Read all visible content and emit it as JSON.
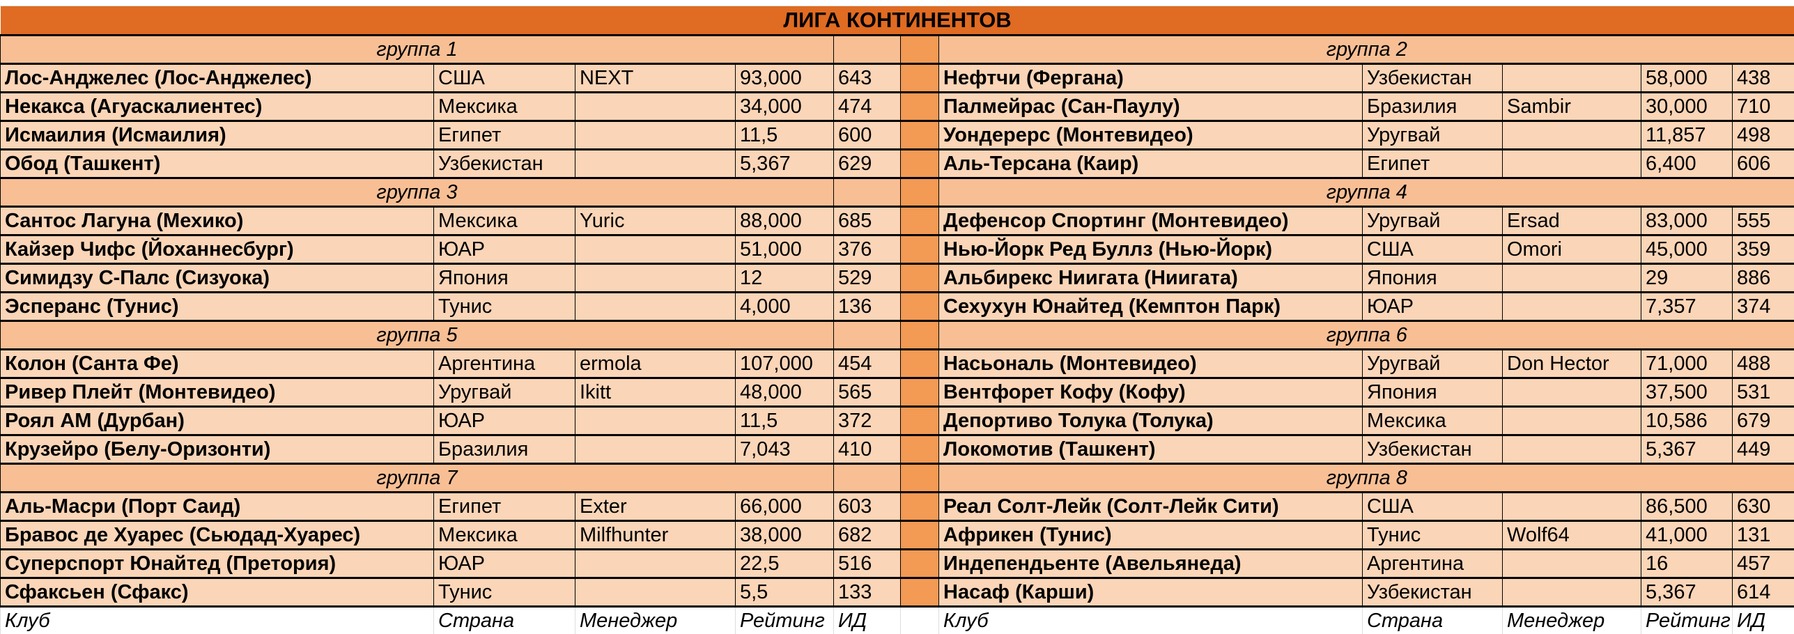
{
  "title": "ЛИГА  КОНТИНЕНТОВ",
  "colors": {
    "title_bg": "#e06b22",
    "group_bg": "#f8bf95",
    "row_bg": "#fad5b7",
    "spacer_bg": "#f39a55"
  },
  "footer": {
    "club": "Клуб",
    "country": "Страна",
    "manager": "Менеджер",
    "rating": "Рейтинг",
    "id": "ИД"
  },
  "groups": [
    {
      "name": "группа 1",
      "teams": [
        {
          "club": "Лос-Анджелес (Лос-Анджелес)",
          "country": "США",
          "manager": "NEXT",
          "rating": "93,000",
          "id": "643"
        },
        {
          "club": "Некакса (Агуаскалиентес)",
          "country": "Мексика",
          "manager": "",
          "rating": "34,000",
          "id": "474"
        },
        {
          "club": "Исмаилия (Исмаилия)",
          "country": "Египет",
          "manager": "",
          "rating": "11,5",
          "id": "600"
        },
        {
          "club": "Обод (Ташкент)",
          "country": "Узбекистан",
          "manager": "",
          "rating": "5,367",
          "id": "629"
        }
      ]
    },
    {
      "name": "группа 2",
      "teams": [
        {
          "club": "Нефтчи (Фергана)",
          "country": "Узбекистан",
          "manager": "",
          "rating": "58,000",
          "id": "438"
        },
        {
          "club": "Палмейрас (Сан-Паулу)",
          "country": "Бразилия",
          "manager": "Sambir",
          "rating": "30,000",
          "id": "710"
        },
        {
          "club": "Уондерерс (Монтевидео)",
          "country": "Уругвай",
          "manager": "",
          "rating": "11,857",
          "id": "498"
        },
        {
          "club": "Аль-Терсана (Каир)",
          "country": "Египет",
          "manager": "",
          "rating": "6,400",
          "id": "606"
        }
      ]
    },
    {
      "name": "группа 3",
      "teams": [
        {
          "club": "Сантос Лагуна (Мехико)",
          "country": "Мексика",
          "manager": "Yuric",
          "rating": "88,000",
          "id": "685"
        },
        {
          "club": "Кайзер Чифс (Йоханнесбург)",
          "country": "ЮАР",
          "manager": "",
          "rating": "51,000",
          "id": "376"
        },
        {
          "club": "Симидзу С-Палс (Сизуока)",
          "country": "Япония",
          "manager": "",
          "rating": "12",
          "id": "529"
        },
        {
          "club": "Эсперанс (Тунис)",
          "country": "Тунис",
          "manager": "",
          "rating": "4,000",
          "id": "136"
        }
      ]
    },
    {
      "name": "группа 4",
      "teams": [
        {
          "club": "Дефенсор Спортинг (Монтевидео)",
          "country": "Уругвай",
          "manager": "Ersad",
          "rating": "83,000",
          "id": "555"
        },
        {
          "club": "Нью-Йорк Ред Буллз (Нью-Йорк)",
          "country": "США",
          "manager": "Omori",
          "rating": "45,000",
          "id": "359"
        },
        {
          "club": "Альбирекс Ниигата (Ниигата)",
          "country": "Япония",
          "manager": "",
          "rating": "29",
          "id": "886"
        },
        {
          "club": "Сехухун Юнайтед (Кемптон Парк)",
          "country": "ЮАР",
          "manager": "",
          "rating": "7,357",
          "id": "374"
        }
      ]
    },
    {
      "name": "группа 5",
      "teams": [
        {
          "club": "Колон (Санта Фе)",
          "country": "Аргентина",
          "manager": "ermola",
          "rating": "107,000",
          "id": "454"
        },
        {
          "club": "Ривер Плейт (Монтевидео)",
          "country": "Уругвай",
          "manager": "Ikitt",
          "rating": "48,000",
          "id": "565"
        },
        {
          "club": "Роял АМ (Дурбан)",
          "country": "ЮАР",
          "manager": "",
          "rating": "11,5",
          "id": "372"
        },
        {
          "club": "Крузейро (Белу-Оризонти)",
          "country": "Бразилия",
          "manager": "",
          "rating": "7,043",
          "id": "410"
        }
      ]
    },
    {
      "name": "группа 6",
      "teams": [
        {
          "club": "Насьональ (Монтевидео)",
          "country": "Уругвай",
          "manager": "Don Hector",
          "rating": "71,000",
          "id": "488"
        },
        {
          "club": "Вентфорет Кофу (Кофу)",
          "country": "Япония",
          "manager": "",
          "rating": "37,500",
          "id": "531"
        },
        {
          "club": "Депортиво Толука (Толука)",
          "country": "Мексика",
          "manager": "",
          "rating": "10,586",
          "id": "679"
        },
        {
          "club": "Локомотив (Ташкент)",
          "country": "Узбекистан",
          "manager": "",
          "rating": "5,367",
          "id": "449"
        }
      ]
    },
    {
      "name": "группа 7",
      "teams": [
        {
          "club": "Аль-Масри (Порт Саид)",
          "country": "Египет",
          "manager": "Exter",
          "rating": "66,000",
          "id": "603"
        },
        {
          "club": "Бравос де Хуарес (Сьюдад-Хуарес)",
          "country": "Мексика",
          "manager": "Milfhunter",
          "rating": "38,000",
          "id": "682"
        },
        {
          "club": "Суперспорт Юнайтед (Претория)",
          "country": "ЮАР",
          "manager": "",
          "rating": "22,5",
          "id": "516"
        },
        {
          "club": "Сфаксьен (Сфакс)",
          "country": "Тунис",
          "manager": "",
          "rating": "5,5",
          "id": "133"
        }
      ]
    },
    {
      "name": "группа 8",
      "teams": [
        {
          "club": "Реал Солт-Лейк (Солт-Лейк Сити)",
          "country": "США",
          "manager": "",
          "rating": "86,500",
          "id": "630"
        },
        {
          "club": "Африкен (Тунис)",
          "country": "Тунис",
          "manager": "Wolf64",
          "rating": "41,000",
          "id": "131"
        },
        {
          "club": "Индепендьенте (Авельянеда)",
          "country": "Аргентина",
          "manager": "",
          "rating": "16",
          "id": "457"
        },
        {
          "club": "Насаф (Карши)",
          "country": "Узбекистан",
          "manager": "",
          "rating": "5,367",
          "id": "614"
        }
      ]
    }
  ]
}
